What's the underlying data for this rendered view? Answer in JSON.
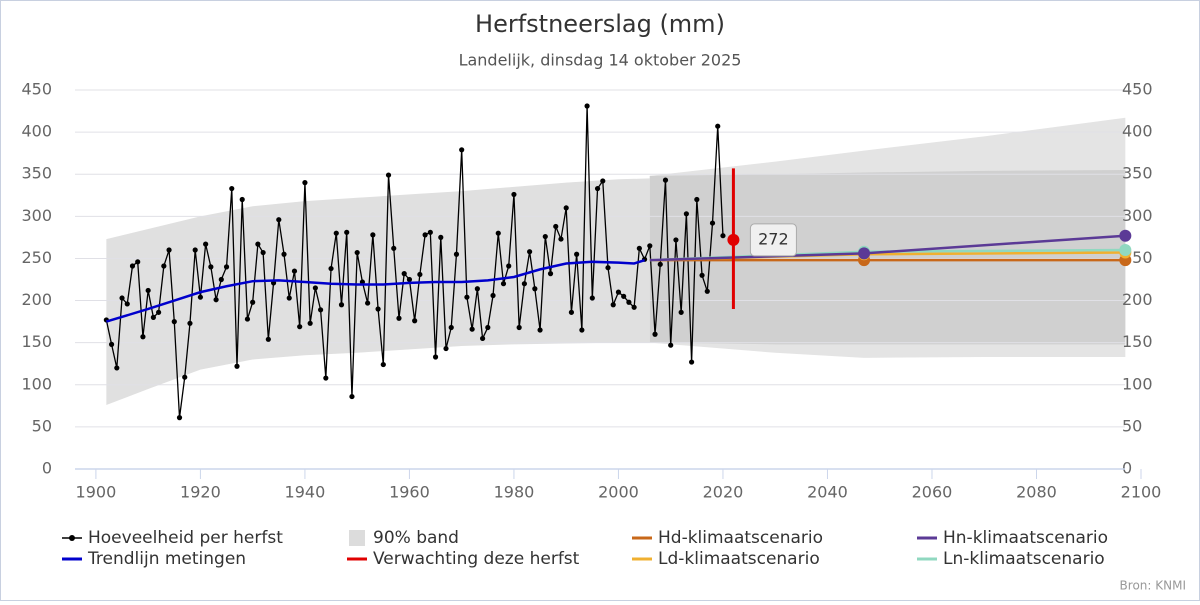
{
  "chart_data": {
    "type": "line",
    "title": "Herfstneerslag (mm)",
    "subtitle": "Landelijk, dinsdag 14 oktober 2025",
    "credit": "Bron: KNMI",
    "xlim": [
      1896,
      2100
    ],
    "xticks": [
      1900,
      1920,
      1940,
      1960,
      1980,
      2000,
      2020,
      2040,
      2060,
      2080,
      2100
    ],
    "ylim": [
      0,
      450
    ],
    "yticks": [
      0,
      50,
      100,
      150,
      200,
      250,
      300,
      350,
      400,
      450
    ],
    "y2lim": [
      0,
      450
    ],
    "y2ticks": [
      0,
      50,
      100,
      150,
      200,
      250,
      300,
      350,
      400,
      450
    ],
    "grid": true,
    "band": {
      "name": "90% band",
      "color": "#dcdcdc",
      "segments": [
        {
          "color": "#e0e0e0",
          "x": [
            1902,
            1910,
            1920,
            1930,
            1940,
            1950,
            1960,
            1970,
            1980,
            1990,
            2000,
            2006
          ],
          "lower": [
            76,
            95,
            118,
            130,
            135,
            138,
            142,
            146,
            148,
            149,
            150,
            150
          ],
          "upper": [
            273,
            285,
            300,
            312,
            318,
            322,
            326,
            330,
            335,
            340,
            344,
            345
          ]
        },
        {
          "color": "#e4e4e4",
          "x": [
            2006,
            2030,
            2047,
            2070,
            2097
          ],
          "lower": [
            150,
            138,
            132,
            133,
            133
          ],
          "upper": [
            348,
            365,
            378,
            395,
            417
          ]
        },
        {
          "color": "#d0d0d0",
          "x": [
            2006,
            2030,
            2047,
            2070,
            2097
          ],
          "lower": [
            150,
            148,
            148,
            148,
            148
          ],
          "upper": [
            348,
            350,
            352,
            354,
            355
          ]
        }
      ]
    },
    "series": [
      {
        "name": "Hoeveelheid per herfst",
        "color": "#000000",
        "marker": true,
        "x": [
          1902,
          1903,
          1904,
          1905,
          1906,
          1907,
          1908,
          1909,
          1910,
          1911,
          1912,
          1913,
          1914,
          1915,
          1916,
          1917,
          1918,
          1919,
          1920,
          1921,
          1922,
          1923,
          1924,
          1925,
          1926,
          1927,
          1928,
          1929,
          1930,
          1931,
          1932,
          1933,
          1934,
          1935,
          1936,
          1937,
          1938,
          1939,
          1940,
          1941,
          1942,
          1943,
          1944,
          1945,
          1946,
          1947,
          1948,
          1949,
          1950,
          1951,
          1952,
          1953,
          1954,
          1955,
          1956,
          1957,
          1958,
          1959,
          1960,
          1961,
          1962,
          1963,
          1964,
          1965,
          1966,
          1967,
          1968,
          1969,
          1970,
          1971,
          1972,
          1973,
          1974,
          1975,
          1976,
          1977,
          1978,
          1979,
          1980,
          1981,
          1982,
          1983,
          1984,
          1985,
          1986,
          1987,
          1988,
          1989,
          1990,
          1991,
          1992,
          1993,
          1994,
          1995,
          1996,
          1997,
          1998,
          1999,
          2000,
          2001,
          2002,
          2003,
          2004,
          2005,
          2006,
          2007,
          2008,
          2009,
          2010,
          2011,
          2012,
          2013,
          2014,
          2015,
          2016,
          2017,
          2018,
          2019,
          2020
        ],
        "values": [
          177,
          148,
          120,
          203,
          196,
          241,
          246,
          157,
          212,
          180,
          186,
          241,
          260,
          175,
          61,
          109,
          173,
          260,
          204,
          267,
          240,
          201,
          225,
          240,
          333,
          122,
          320,
          178,
          198,
          267,
          257,
          154,
          221,
          296,
          255,
          203,
          235,
          169,
          340,
          173,
          215,
          189,
          108,
          238,
          280,
          195,
          281,
          86,
          257,
          222,
          197,
          278,
          190,
          124,
          349,
          262,
          179,
          232,
          225,
          176,
          231,
          278,
          281,
          133,
          275,
          143,
          168,
          255,
          379,
          204,
          166,
          214,
          155,
          168,
          206,
          280,
          220,
          241,
          326,
          168,
          220,
          258,
          214,
          165,
          276,
          232,
          288,
          273,
          310,
          186,
          255,
          165,
          431,
          203,
          333,
          342,
          239,
          195,
          210,
          205,
          198,
          192,
          262,
          249,
          265,
          160,
          243,
          343,
          147,
          272,
          186,
          303,
          127,
          320,
          230,
          211,
          292,
          407,
          277
        ]
      },
      {
        "name": "Trendlijn metingen",
        "color": "#0000cc",
        "marker": false,
        "x": [
          1902,
          1910,
          1915,
          1920,
          1925,
          1930,
          1935,
          1940,
          1945,
          1950,
          1955,
          1960,
          1965,
          1970,
          1975,
          1980,
          1985,
          1990,
          1995,
          2000,
          2003,
          2005
        ],
        "values": [
          175,
          190,
          200,
          210,
          217,
          223,
          224,
          222,
          220,
          219,
          219,
          221,
          222,
          222,
          224,
          228,
          237,
          244,
          246,
          245,
          244,
          248
        ]
      },
      {
        "name": "Hd-klimaatscenario",
        "color": "#c8681a",
        "marker": true,
        "x": [
          2006,
          2047,
          2097
        ],
        "values": [
          248,
          248,
          248
        ]
      },
      {
        "name": "Ld-klimaatscenario",
        "color": "#f0b030",
        "marker": true,
        "x": [
          2006,
          2047,
          2097
        ],
        "values": [
          248,
          255,
          257
        ]
      },
      {
        "name": "Ln-klimaatscenario",
        "color": "#90d8c0",
        "marker": true,
        "x": [
          2006,
          2047,
          2097
        ],
        "values": [
          248,
          258,
          260
        ]
      },
      {
        "name": "Hn-klimaatscenario",
        "color": "#5b3a96",
        "marker": true,
        "x": [
          2006,
          2047,
          2097
        ],
        "values": [
          248,
          256,
          277
        ]
      }
    ],
    "forecast": {
      "name": "Verwachting deze herfst",
      "color": "#e00000",
      "x": 2022,
      "value": 272,
      "low": 190,
      "high": 357
    }
  }
}
